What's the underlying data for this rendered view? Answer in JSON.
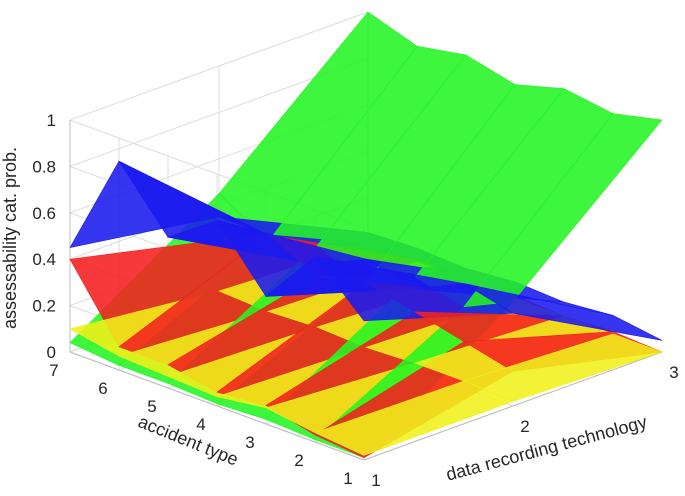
{
  "chart_data": {
    "type": "surface",
    "title": "",
    "xlabel": "data recording technology",
    "ylabel": "accident type",
    "zlabel": "assessability cat. prob.",
    "x_ticks": [
      "1",
      "2",
      "3"
    ],
    "y_ticks": [
      "1",
      "2",
      "3",
      "4",
      "5",
      "6",
      "7"
    ],
    "z_ticks": [
      "0",
      "0.2",
      "0.4",
      "0.6",
      "0.8",
      "1"
    ],
    "zlim": [
      0,
      1
    ],
    "grid": true,
    "colors": {
      "green": "#22f522",
      "blue": "#1a1aee",
      "red": "#f51f1f",
      "yellow": "#f0f01a"
    },
    "series": [
      {
        "color_key": "green",
        "values": [
          [
            0.01,
            0.45,
            1.0
          ],
          [
            0.01,
            0.35,
            0.95
          ],
          [
            0.02,
            0.4,
            0.98
          ],
          [
            0.01,
            0.3,
            0.92
          ],
          [
            0.02,
            0.38,
            0.97
          ],
          [
            0.02,
            0.32,
            0.93
          ],
          [
            0.04,
            0.45,
            1.0
          ]
        ]
      },
      {
        "color_key": "blue",
        "values": [
          [
            0.6,
            0.4,
            0.05
          ],
          [
            0.8,
            0.45,
            0.08
          ],
          [
            0.55,
            0.35,
            0.06
          ],
          [
            0.8,
            0.4,
            0.07
          ],
          [
            0.65,
            0.3,
            0.05
          ],
          [
            0.9,
            0.35,
            0.06
          ],
          [
            0.45,
            0.35,
            0.05
          ]
        ]
      },
      {
        "color_key": "red",
        "values": [
          [
            0.01,
            0.15,
            0.0
          ],
          [
            0.03,
            0.2,
            0.01
          ],
          [
            0.08,
            0.25,
            0.0
          ],
          [
            0.06,
            0.3,
            0.01
          ],
          [
            0.1,
            0.25,
            0.0
          ],
          [
            0.1,
            0.35,
            0.01
          ],
          [
            0.4,
            0.25,
            0.0
          ]
        ]
      },
      {
        "color_key": "yellow",
        "values": [
          [
            0.02,
            0.02,
            0.0
          ],
          [
            0.04,
            0.03,
            0.0
          ],
          [
            0.07,
            0.03,
            0.0
          ],
          [
            0.04,
            0.02,
            0.0
          ],
          [
            0.05,
            0.03,
            0.0
          ],
          [
            0.06,
            0.02,
            0.0
          ],
          [
            0.1,
            0.03,
            0.0
          ]
        ]
      }
    ]
  }
}
